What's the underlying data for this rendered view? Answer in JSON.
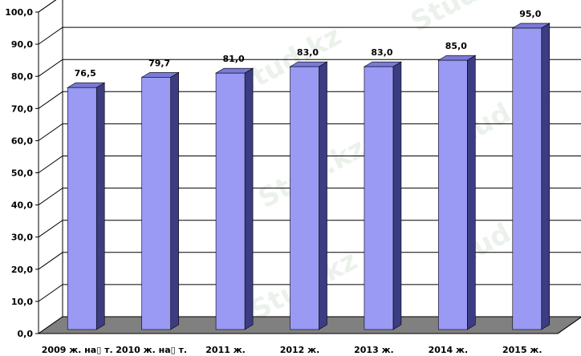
{
  "chart_data": {
    "type": "bar",
    "title": "",
    "xlabel": "",
    "ylabel": "",
    "ylim": [
      0,
      100
    ],
    "yticks": [
      "0,0",
      "10,0",
      "20,0",
      "30,0",
      "40,0",
      "50,0",
      "60,0",
      "70,0",
      "80,0",
      "90,0",
      "100,0"
    ],
    "categories": [
      "2009 ж. на▯ т.",
      "2010 ж. на▯ т.",
      "2011 ж.",
      "2012 ж.",
      "2013 ж.",
      "2014 ж.",
      "2015 ж."
    ],
    "values": [
      76.5,
      79.7,
      81.0,
      83.0,
      83.0,
      85.0,
      95.0
    ],
    "data_labels": [
      "76,5",
      "79,7",
      "81,0",
      "83,0",
      "83,0",
      "85,0",
      "95,0"
    ],
    "grid": true,
    "legend": "none",
    "colors": {
      "bar_front": "#9a9af5",
      "bar_side": "#3c3c82",
      "bar_top": "#7a7ad8",
      "floor": "#808080",
      "gridline": "#000000"
    }
  },
  "watermark": "Stud.kz"
}
